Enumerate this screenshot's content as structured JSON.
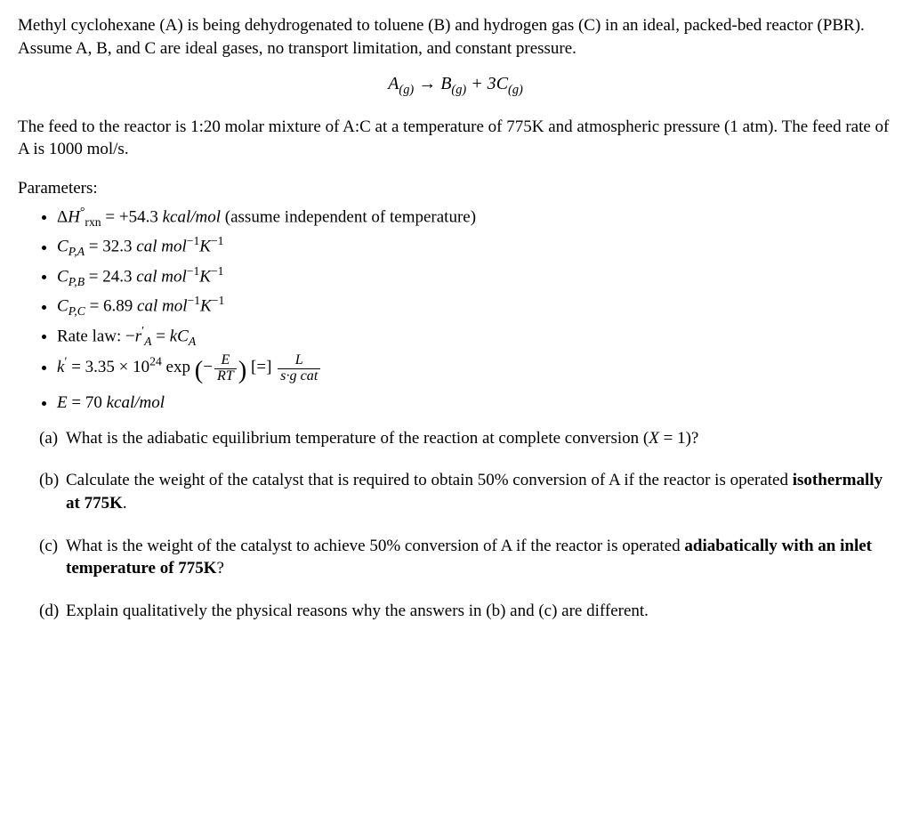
{
  "intro1": "Methyl cyclohexane (A) is being dehydrogenated to toluene (B) and hydrogen gas (C) in an ideal, packed-bed reactor (PBR). Assume A, B, and C are ideal gases, no transport limitation, and constant pressure.",
  "equation": {
    "A_sym": "A",
    "A_sub": "(g)",
    "arrow": "→",
    "B_sym": "B",
    "B_sub": "(g)",
    "plus": " + 3",
    "C_sym": "C",
    "C_sub": "(g)"
  },
  "intro2": "The feed to the reactor is 1:20 molar mixture of A:C at a temperature of 775K and atmospheric pressure (1 atm). The feed rate of A is 1000 mol/s.",
  "params_heading": "Parameters:",
  "params": {
    "dH": {
      "lhs_pre": "Δ",
      "lhs_H": "H",
      "lhs_sub": "rxn",
      "lhs_sup": "°",
      "eq": " = ",
      "val": "+54.3 ",
      "unit_i": "kcal/mol",
      "tail": " (assume independent of temperature)"
    },
    "cpa": {
      "sym": "C",
      "sub": "P,A",
      "eq": " = 32.3 ",
      "unit": "cal mol",
      "exp1": "−1",
      "K": "K",
      "exp2": "−1"
    },
    "cpb": {
      "sym": "C",
      "sub": "P,B",
      "eq": " = 24.3 ",
      "unit": "cal mol",
      "exp1": "−1",
      "K": "K",
      "exp2": "−1"
    },
    "cpc": {
      "sym": "C",
      "sub": "P,C",
      "eq": " = 6.89 ",
      "unit": "cal mol",
      "exp1": "−1",
      "K": "K",
      "exp2": "−1"
    },
    "rate": {
      "pre": "Rate law: −",
      "r": "r",
      "rsup": "′",
      "rsub": "A",
      "eq": " = ",
      "k": "kC",
      "ksub": "A"
    },
    "kprime": {
      "k": "k",
      "sup": "′",
      "eq": " = 3.35 × 10",
      "exp": "24",
      "sp": " exp",
      "lpar": "(",
      "minus": "−",
      "num": "E",
      "den": "RT",
      "rpar": ")",
      "bracket_pre": "  [=] ",
      "num2": "L",
      "den2": "s·g cat"
    },
    "E": {
      "sym": "E",
      "eq": " = 70 ",
      "unit": "kcal/mol"
    }
  },
  "questions": {
    "a": {
      "label": "(a)",
      "text_pre": "What is the adiabatic equilibrium temperature of the reaction at complete conversion (",
      "X": "X",
      "text_post": " = 1)?"
    },
    "b": {
      "label": "(b)",
      "text_pre": "Calculate the weight of the catalyst that is required to obtain 50% conversion of A if the reactor is operated ",
      "bold": "isothermally at 775K",
      "text_post": "."
    },
    "c": {
      "label": "(c)",
      "text_pre": "What is the weight of the catalyst to achieve 50% conversion of A if the reactor is operated ",
      "bold": "adiabatically with an inlet temperature of 775K",
      "text_post": "?"
    },
    "d": {
      "label": "(d)",
      "text": "Explain qualitatively the physical reasons why the answers in (b) and (c) are different."
    }
  }
}
